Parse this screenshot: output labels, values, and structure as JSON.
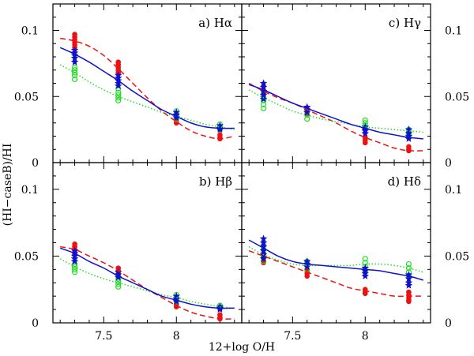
{
  "figure": {
    "ylabel": "(HI−caseB)/HI",
    "xlabel": "12+log O/H",
    "xlim": [
      7.15,
      8.45
    ],
    "ylim": [
      0,
      0.12
    ],
    "xticks": [
      7.5,
      8
    ],
    "xtick_labels": [
      "7.5",
      "8"
    ],
    "yticks": [
      0,
      0.05,
      0.1
    ],
    "ytick_labels": [
      "0",
      "0.05",
      "0.1"
    ]
  },
  "colors": {
    "red": "#ee1111",
    "green": "#22dd22",
    "blue": "#1111cc"
  },
  "chart_data": [
    {
      "type": "scatter",
      "id": "a",
      "title": "a) Hα",
      "xlabel": "12+log O/H",
      "ylabel": "(HI−caseB)/HI",
      "ylim": [
        0,
        0.12
      ],
      "series": [
        {
          "name": "red",
          "marker": "dot",
          "x": [
            7.3,
            7.3,
            7.3,
            7.3,
            7.3,
            7.3,
            7.6,
            7.6,
            7.6,
            7.6,
            7.6,
            8.0,
            8.0,
            8.0,
            8.0,
            8.3,
            8.3,
            8.3
          ],
          "y": [
            0.097,
            0.095,
            0.093,
            0.091,
            0.089,
            0.087,
            0.076,
            0.074,
            0.072,
            0.07,
            0.068,
            0.036,
            0.034,
            0.032,
            0.03,
            0.021,
            0.019,
            0.018
          ]
        },
        {
          "name": "green",
          "marker": "open-circle",
          "x": [
            7.3,
            7.3,
            7.3,
            7.3,
            7.3,
            7.6,
            7.6,
            7.6,
            7.6,
            7.6,
            8.0,
            8.0,
            8.0,
            8.0,
            8.3,
            8.3,
            8.3
          ],
          "y": [
            0.072,
            0.07,
            0.068,
            0.066,
            0.063,
            0.056,
            0.053,
            0.051,
            0.049,
            0.047,
            0.039,
            0.037,
            0.035,
            0.033,
            0.029,
            0.027,
            0.025
          ]
        },
        {
          "name": "blue",
          "marker": "star",
          "x": [
            7.3,
            7.3,
            7.3,
            7.3,
            7.3,
            7.6,
            7.6,
            7.6,
            7.6,
            7.6,
            8.0,
            8.0,
            8.0,
            8.3,
            8.3,
            8.3
          ],
          "y": [
            0.085,
            0.083,
            0.081,
            0.079,
            0.076,
            0.066,
            0.064,
            0.062,
            0.06,
            0.058,
            0.038,
            0.036,
            0.034,
            0.028,
            0.026,
            0.025
          ]
        }
      ],
      "fits": [
        {
          "name": "red-dashed",
          "style": "dashed",
          "x": [
            7.2,
            7.3,
            7.4,
            7.5,
            7.6,
            7.7,
            7.8,
            7.9,
            8.0,
            8.1,
            8.2,
            8.3,
            8.4
          ],
          "y": [
            0.094,
            0.092,
            0.088,
            0.081,
            0.071,
            0.06,
            0.049,
            0.039,
            0.031,
            0.024,
            0.02,
            0.018,
            0.02
          ]
        },
        {
          "name": "green-dotted",
          "style": "dotted",
          "x": [
            7.2,
            7.3,
            7.4,
            7.5,
            7.6,
            7.7,
            7.8,
            7.9,
            8.0,
            8.1,
            8.2,
            8.3,
            8.4
          ],
          "y": [
            0.074,
            0.068,
            0.061,
            0.055,
            0.05,
            0.046,
            0.042,
            0.038,
            0.035,
            0.032,
            0.029,
            0.027,
            0.025
          ]
        },
        {
          "name": "blue-solid",
          "style": "solid",
          "x": [
            7.2,
            7.3,
            7.4,
            7.5,
            7.6,
            7.7,
            7.8,
            7.9,
            8.0,
            8.1,
            8.2,
            8.3,
            8.4
          ],
          "y": [
            0.087,
            0.082,
            0.076,
            0.069,
            0.062,
            0.054,
            0.047,
            0.04,
            0.035,
            0.03,
            0.027,
            0.026,
            0.026
          ]
        }
      ]
    },
    {
      "type": "scatter",
      "id": "b",
      "title": "b) Hβ",
      "xlabel": "12+log O/H",
      "ylabel": "(HI−caseB)/HI",
      "ylim": [
        0,
        0.12
      ],
      "series": [
        {
          "name": "red",
          "marker": "dot",
          "x": [
            7.3,
            7.3,
            7.3,
            7.3,
            7.3,
            7.6,
            7.6,
            7.6,
            7.6,
            8.0,
            8.0,
            8.0,
            8.3,
            8.3,
            8.3
          ],
          "y": [
            0.059,
            0.057,
            0.055,
            0.053,
            0.051,
            0.041,
            0.039,
            0.037,
            0.035,
            0.016,
            0.014,
            0.012,
            0.006,
            0.004,
            0.003
          ]
        },
        {
          "name": "green",
          "marker": "open-circle",
          "x": [
            7.3,
            7.3,
            7.3,
            7.3,
            7.6,
            7.6,
            7.6,
            7.6,
            8.0,
            8.0,
            8.0,
            8.0,
            8.3,
            8.3,
            8.3
          ],
          "y": [
            0.044,
            0.042,
            0.04,
            0.038,
            0.033,
            0.031,
            0.029,
            0.027,
            0.021,
            0.019,
            0.018,
            0.016,
            0.013,
            0.012,
            0.011
          ]
        },
        {
          "name": "blue",
          "marker": "star",
          "x": [
            7.3,
            7.3,
            7.3,
            7.3,
            7.3,
            7.6,
            7.6,
            7.6,
            8.0,
            8.0,
            8.0,
            8.3,
            8.3,
            8.3
          ],
          "y": [
            0.054,
            0.052,
            0.05,
            0.048,
            0.046,
            0.038,
            0.036,
            0.034,
            0.02,
            0.018,
            0.016,
            0.012,
            0.011,
            0.01
          ]
        }
      ],
      "fits": [
        {
          "name": "red-dashed",
          "style": "dashed",
          "x": [
            7.2,
            7.3,
            7.4,
            7.5,
            7.6,
            7.7,
            7.8,
            7.9,
            8.0,
            8.1,
            8.2,
            8.3,
            8.4
          ],
          "y": [
            0.057,
            0.055,
            0.05,
            0.045,
            0.039,
            0.032,
            0.025,
            0.019,
            0.013,
            0.008,
            0.005,
            0.003,
            0.003
          ]
        },
        {
          "name": "green-dotted",
          "style": "dotted",
          "x": [
            7.2,
            7.3,
            7.4,
            7.5,
            7.6,
            7.7,
            7.8,
            7.9,
            8.0,
            8.1,
            8.2,
            8.3,
            8.4
          ],
          "y": [
            0.048,
            0.042,
            0.037,
            0.033,
            0.03,
            0.027,
            0.024,
            0.021,
            0.019,
            0.016,
            0.014,
            0.012,
            0.011
          ]
        },
        {
          "name": "blue-solid",
          "style": "solid",
          "x": [
            7.2,
            7.3,
            7.4,
            7.5,
            7.6,
            7.7,
            7.8,
            7.9,
            8.0,
            8.1,
            8.2,
            8.3,
            8.4
          ],
          "y": [
            0.056,
            0.052,
            0.046,
            0.041,
            0.035,
            0.03,
            0.025,
            0.02,
            0.017,
            0.014,
            0.012,
            0.011,
            0.011
          ]
        }
      ]
    },
    {
      "type": "scatter",
      "id": "c",
      "title": "c) Hγ",
      "xlabel": "12+log O/H",
      "ylabel": "(HI−caseB)/HI",
      "ylim": [
        0,
        0.12
      ],
      "series": [
        {
          "name": "red",
          "marker": "dot",
          "x": [
            7.3,
            7.3,
            7.3,
            7.3,
            7.6,
            7.6,
            7.6,
            8.0,
            8.0,
            8.0,
            8.3,
            8.3,
            8.3
          ],
          "y": [
            0.058,
            0.055,
            0.052,
            0.049,
            0.041,
            0.039,
            0.037,
            0.019,
            0.017,
            0.015,
            0.012,
            0.01,
            0.009
          ]
        },
        {
          "name": "green",
          "marker": "open-circle",
          "x": [
            7.3,
            7.3,
            7.3,
            7.3,
            7.3,
            7.6,
            7.6,
            7.6,
            8.0,
            8.0,
            8.0,
            8.0,
            8.3,
            8.3,
            8.3,
            8.3
          ],
          "y": [
            0.054,
            0.05,
            0.047,
            0.044,
            0.041,
            0.04,
            0.036,
            0.033,
            0.032,
            0.03,
            0.028,
            0.026,
            0.025,
            0.023,
            0.021,
            0.019
          ]
        },
        {
          "name": "blue",
          "marker": "star",
          "x": [
            7.3,
            7.3,
            7.3,
            7.3,
            7.3,
            7.6,
            7.6,
            7.6,
            8.0,
            8.0,
            8.0,
            8.0,
            8.3,
            8.3,
            8.3,
            8.3
          ],
          "y": [
            0.06,
            0.057,
            0.054,
            0.051,
            0.048,
            0.042,
            0.04,
            0.038,
            0.027,
            0.025,
            0.024,
            0.022,
            0.025,
            0.022,
            0.02,
            0.018
          ]
        }
      ],
      "fits": [
        {
          "name": "red-dashed",
          "style": "dashed",
          "x": [
            7.2,
            7.3,
            7.4,
            7.5,
            7.6,
            7.7,
            7.8,
            7.9,
            8.0,
            8.1,
            8.2,
            8.3,
            8.4
          ],
          "y": [
            0.06,
            0.054,
            0.049,
            0.045,
            0.04,
            0.035,
            0.03,
            0.024,
            0.019,
            0.015,
            0.011,
            0.009,
            0.009
          ]
        },
        {
          "name": "green-dotted",
          "style": "dotted",
          "x": [
            7.2,
            7.3,
            7.4,
            7.5,
            7.6,
            7.7,
            7.8,
            7.9,
            8.0,
            8.1,
            8.2,
            8.3,
            8.4
          ],
          "y": [
            0.055,
            0.049,
            0.044,
            0.039,
            0.036,
            0.033,
            0.031,
            0.029,
            0.027,
            0.026,
            0.025,
            0.024,
            0.023
          ]
        },
        {
          "name": "blue-solid",
          "style": "solid",
          "x": [
            7.2,
            7.3,
            7.4,
            7.5,
            7.6,
            7.7,
            7.8,
            7.9,
            8.0,
            8.1,
            8.2,
            8.3,
            8.4
          ],
          "y": [
            0.059,
            0.055,
            0.05,
            0.045,
            0.041,
            0.037,
            0.033,
            0.029,
            0.026,
            0.023,
            0.021,
            0.019,
            0.018
          ]
        }
      ]
    },
    {
      "type": "scatter",
      "id": "d",
      "title": "d) Hδ",
      "xlabel": "12+log O/H",
      "ylabel": "(HI−caseB)/HI",
      "ylim": [
        0,
        0.12
      ],
      "series": [
        {
          "name": "red",
          "marker": "dot",
          "x": [
            7.3,
            7.3,
            7.3,
            7.3,
            7.6,
            7.6,
            7.6,
            8.0,
            8.0,
            8.0,
            8.3,
            8.3,
            8.3,
            8.3,
            8.3
          ],
          "y": [
            0.052,
            0.049,
            0.047,
            0.045,
            0.039,
            0.037,
            0.035,
            0.025,
            0.023,
            0.022,
            0.023,
            0.021,
            0.019,
            0.017,
            0.016
          ]
        },
        {
          "name": "green",
          "marker": "open-circle",
          "x": [
            7.3,
            7.3,
            7.3,
            7.3,
            7.3,
            7.6,
            7.6,
            7.6,
            8.0,
            8.0,
            8.0,
            8.0,
            8.3,
            8.3,
            8.3,
            8.3
          ],
          "y": [
            0.058,
            0.055,
            0.052,
            0.049,
            0.046,
            0.046,
            0.043,
            0.04,
            0.048,
            0.045,
            0.042,
            0.039,
            0.044,
            0.041,
            0.038,
            0.035
          ]
        },
        {
          "name": "blue",
          "marker": "star",
          "x": [
            7.3,
            7.3,
            7.3,
            7.3,
            7.3,
            7.3,
            7.6,
            7.6,
            7.6,
            8.0,
            8.0,
            8.0,
            8.0,
            8.3,
            8.3,
            8.3,
            8.3
          ],
          "y": [
            0.063,
            0.06,
            0.057,
            0.054,
            0.051,
            0.048,
            0.046,
            0.044,
            0.042,
            0.041,
            0.039,
            0.037,
            0.035,
            0.036,
            0.033,
            0.03,
            0.028
          ]
        }
      ],
      "fits": [
        {
          "name": "red-dashed",
          "style": "dashed",
          "x": [
            7.2,
            7.3,
            7.4,
            7.5,
            7.6,
            7.7,
            7.8,
            7.9,
            8.0,
            8.1,
            8.2,
            8.3,
            8.4
          ],
          "y": [
            0.054,
            0.05,
            0.046,
            0.042,
            0.038,
            0.034,
            0.03,
            0.026,
            0.024,
            0.022,
            0.02,
            0.02,
            0.02
          ]
        },
        {
          "name": "green-dotted",
          "style": "dotted",
          "x": [
            7.2,
            7.3,
            7.4,
            7.5,
            7.6,
            7.7,
            7.8,
            7.9,
            8.0,
            8.1,
            8.2,
            8.3,
            8.4
          ],
          "y": [
            0.057,
            0.051,
            0.047,
            0.044,
            0.043,
            0.043,
            0.043,
            0.043,
            0.044,
            0.044,
            0.043,
            0.041,
            0.038
          ]
        },
        {
          "name": "blue-solid",
          "style": "solid",
          "x": [
            7.2,
            7.3,
            7.4,
            7.5,
            7.6,
            7.7,
            7.8,
            7.9,
            8.0,
            8.1,
            8.2,
            8.3,
            8.4
          ],
          "y": [
            0.062,
            0.056,
            0.05,
            0.046,
            0.044,
            0.043,
            0.042,
            0.041,
            0.04,
            0.039,
            0.037,
            0.035,
            0.032
          ]
        }
      ]
    }
  ]
}
